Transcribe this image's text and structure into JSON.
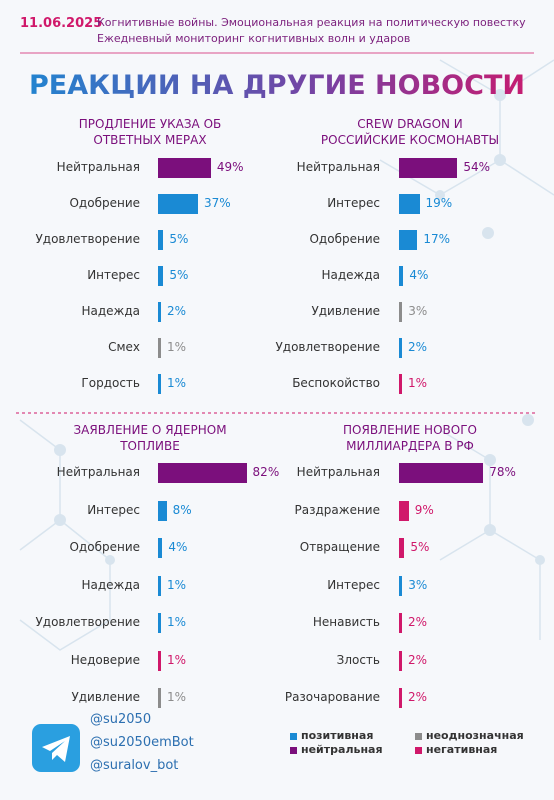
{
  "header": {
    "date": "11.06.2025",
    "lines": [
      "Когнитивные войны. Эмоциональная реакция на политическую повестку",
      "Ежедневный мониторинг когнитивных волн и ударов"
    ]
  },
  "title": "РЕАКЦИИ НА ДРУГИЕ НОВОСТИ",
  "chart_data": [
    {
      "type": "bar",
      "orientation": "horizontal",
      "title": "ПРОДЛЕНИЕ УКАЗА ОБ ОТВЕТНЫХ МЕРАХ",
      "categories": [
        "Нейтральная",
        "Одобрение",
        "Удовлетворение",
        "Интерес",
        "Надежда",
        "Смех",
        "Гордость"
      ],
      "values": [
        49,
        37,
        5,
        5,
        2,
        1,
        1
      ],
      "value_labels": [
        "49%",
        "37%",
        "5%",
        "5%",
        "2%",
        "1%",
        "1%"
      ],
      "colors": [
        "#7b0f7c",
        "#1a8ad4",
        "#1a8ad4",
        "#1a8ad4",
        "#1a8ad4",
        "#8c8c8c",
        "#1a8ad4"
      ]
    },
    {
      "type": "bar",
      "orientation": "horizontal",
      "title": "CREW DRAGON И РОССИЙСКИЕ КОСМОНАВТЫ",
      "categories": [
        "Нейтральная",
        "Интерес",
        "Одобрение",
        "Надежда",
        "Удивление",
        "Удовлетворение",
        "Беспокойство"
      ],
      "values": [
        54,
        19,
        17,
        4,
        3,
        2,
        1
      ],
      "value_labels": [
        "54%",
        "19%",
        "17%",
        "4%",
        "3%",
        "2%",
        "1%"
      ],
      "colors": [
        "#7b0f7c",
        "#1a8ad4",
        "#1a8ad4",
        "#1a8ad4",
        "#8c8c8c",
        "#1a8ad4",
        "#d0186a"
      ]
    },
    {
      "type": "bar",
      "orientation": "horizontal",
      "title": "ЗАЯВЛЕНИЕ О ЯДЕРНОМ ТОПЛИВЕ",
      "categories": [
        "Нейтральная",
        "Интерес",
        "Одобрение",
        "Надежда",
        "Удовлетворение",
        "Недоверие",
        "Удивление"
      ],
      "values": [
        82,
        8,
        4,
        1,
        1,
        1,
        1
      ],
      "value_labels": [
        "82%",
        "8%",
        "4%",
        "1%",
        "1%",
        "1%",
        "1%"
      ],
      "colors": [
        "#7b0f7c",
        "#1a8ad4",
        "#1a8ad4",
        "#1a8ad4",
        "#1a8ad4",
        "#d0186a",
        "#8c8c8c"
      ]
    },
    {
      "type": "bar",
      "orientation": "horizontal",
      "title": "ПОЯВЛЕНИЕ НОВОГО МИЛЛИАРДЕРА В РФ",
      "categories": [
        "Нейтральная",
        "Раздражение",
        "Отвращение",
        "Интерес",
        "Ненависть",
        "Злость",
        "Разочарование"
      ],
      "values": [
        78,
        9,
        5,
        3,
        2,
        2,
        2
      ],
      "value_labels": [
        "78%",
        "9%",
        "5%",
        "3%",
        "2%",
        "2%",
        "2%"
      ],
      "colors": [
        "#7b0f7c",
        "#d0186a",
        "#d0186a",
        "#1a8ad4",
        "#d0186a",
        "#d0186a",
        "#d0186a"
      ]
    }
  ],
  "legend": [
    {
      "name": "позитивная",
      "color": "#1a8ad4"
    },
    {
      "name": "неоднозначная",
      "color": "#8c8c8c"
    },
    {
      "name": "нейтральная",
      "color": "#7b0f7c"
    },
    {
      "name": "негативная",
      "color": "#d0186a"
    }
  ],
  "footer": {
    "handles": [
      "@su2050",
      "@su2050emBot",
      "@suralov_bot"
    ]
  }
}
